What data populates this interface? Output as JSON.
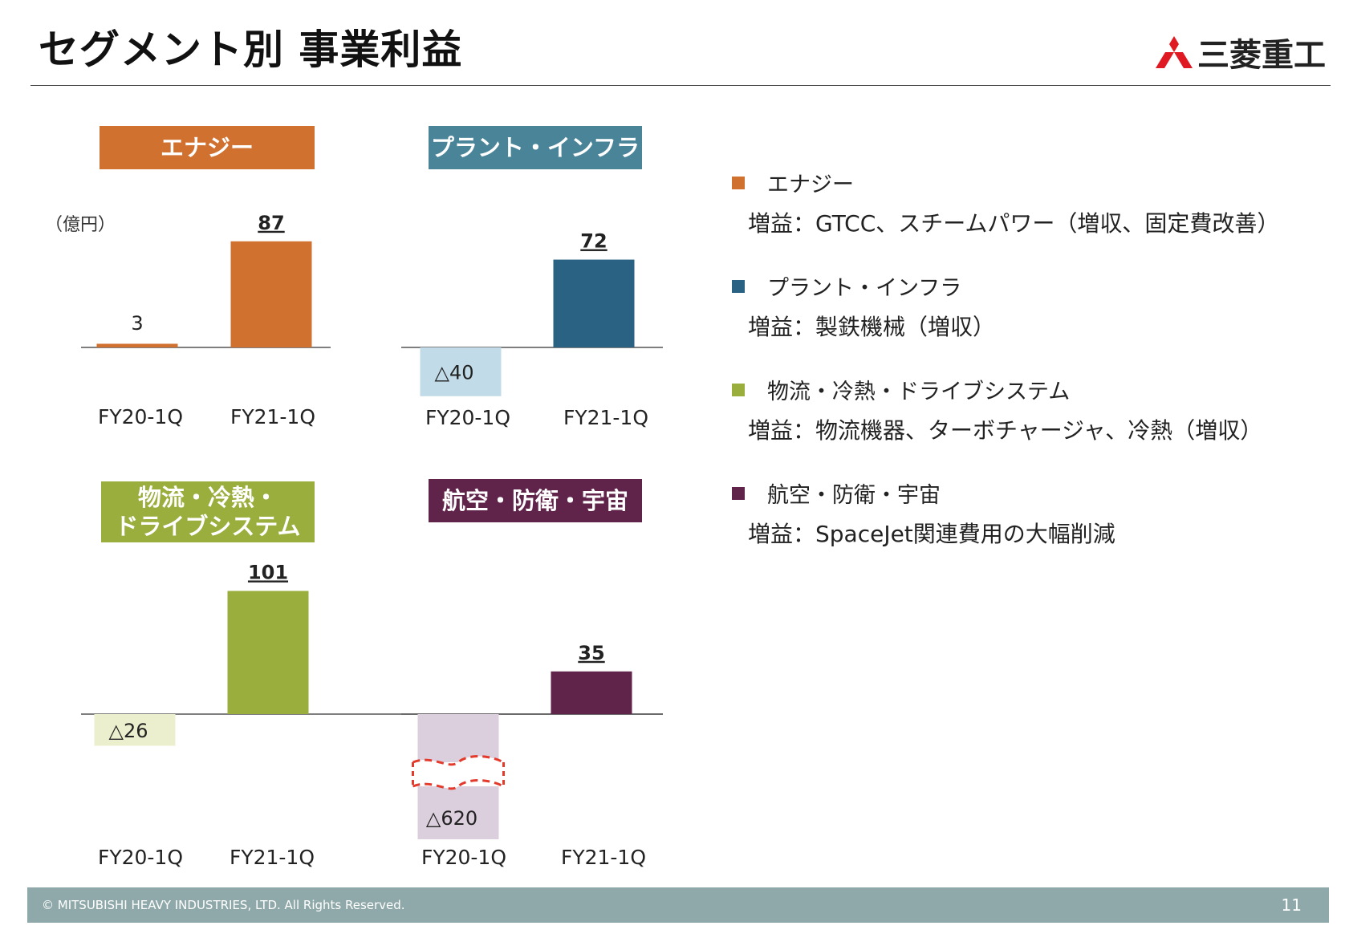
{
  "title": "セグメント別 事業利益",
  "logo": {
    "name": "三菱重工"
  },
  "unit_label": "（億円）",
  "colors": {
    "energy": "#d07130",
    "energy_light": "#f8e4d4",
    "plant": "#2a6283",
    "plant_light": "#c2dbe9",
    "plant_title": "#4a8499",
    "logistics": "#9aae3e",
    "logistics_light": "#ecefcd",
    "aero": "#60234a",
    "aero_light": "#dccfdd",
    "logo_red": "#e01a22",
    "break_mark": "#e33a2c"
  },
  "chart_data": [
    {
      "type": "bar",
      "title": "エナジー",
      "categories": [
        "FY20-1Q",
        "FY21-1Q"
      ],
      "values": [
        3,
        87
      ],
      "value_labels": [
        "3",
        "87"
      ]
    },
    {
      "type": "bar",
      "title": "プラント・インフラ",
      "categories": [
        "FY20-1Q",
        "FY21-1Q"
      ],
      "values": [
        -40,
        72
      ],
      "value_labels": [
        "△40",
        "72"
      ]
    },
    {
      "type": "bar",
      "title_lines": [
        "物流・冷熱・",
        "ドライブシステム"
      ],
      "categories": [
        "FY20-1Q",
        "FY21-1Q"
      ],
      "values": [
        -26,
        101
      ],
      "value_labels": [
        "△26",
        "101"
      ]
    },
    {
      "type": "bar",
      "title": "航空・防衛・宇宙",
      "categories": [
        "FY20-1Q",
        "FY21-1Q"
      ],
      "values": [
        -620,
        35
      ],
      "value_labels": [
        "△620",
        "35"
      ],
      "axis_break": true
    }
  ],
  "legend": [
    {
      "name": "エナジー",
      "desc": "増益：GTCC、スチームパワー（増収、固定費改善）"
    },
    {
      "name": "プラント・インフラ",
      "desc": "増益：製鉄機械（増収）"
    },
    {
      "name": "物流・冷熱・ドライブシステム",
      "desc": "増益：物流機器、ターボチャージャ、冷熱（増収）"
    },
    {
      "name": "航空・防衛・宇宙",
      "desc": "増益：SpaceJet関連費用の大幅削減"
    }
  ],
  "footer": {
    "copyright": "© MITSUBISHI HEAVY INDUSTRIES, LTD.  All Rights Reserved.",
    "page_number": "11"
  }
}
